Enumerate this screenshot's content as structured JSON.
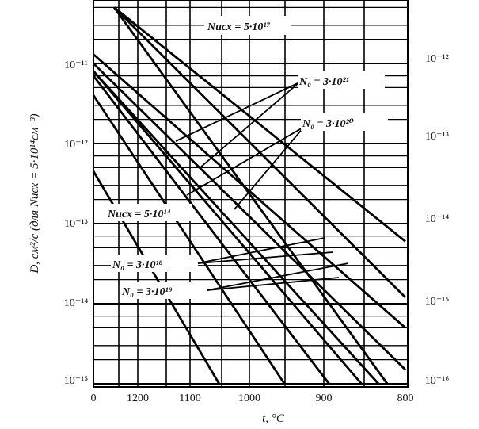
{
  "chart_data": {
    "type": "line",
    "x_scale": "reciprocal-temperature",
    "x_ticks": [
      "1200",
      "1100",
      "1000",
      "900",
      "800"
    ],
    "x_origin_label": "0",
    "xlabel": "t, °C",
    "ylabel": "D, см²/с (для Nисх = 5·10¹⁴см⁻³)",
    "y_scale": "log",
    "ylim": [
      1e-15,
      5e-11
    ],
    "y_ticks_left": [
      "10⁻¹¹",
      "10⁻¹²",
      "10⁻¹³",
      "10⁻¹⁴",
      "10⁻¹⁵"
    ],
    "y_ticks_right": [
      "10⁻¹²",
      "10⁻¹³",
      "10⁻¹⁴",
      "10⁻¹⁵",
      "10⁻¹⁶"
    ],
    "grid": true,
    "annotations": [
      {
        "id": "nisx-high",
        "text": "Nисх = 5·10¹⁷"
      },
      {
        "id": "n0-21",
        "text": "N₀ = 3·10²¹"
      },
      {
        "id": "n0-20",
        "text": "N₀ = 3·10²⁰"
      },
      {
        "id": "nisx-low",
        "text": "Nисх = 5·10¹⁴"
      },
      {
        "id": "n0-18",
        "text": "N₀ = 3·10¹⁸"
      },
      {
        "id": "n0-19",
        "text": "N₀ = 3·10¹⁹"
      }
    ],
    "series": [
      {
        "x": [
          1250,
          800
        ],
        "y": [
          5e-11,
          6e-14
        ]
      },
      {
        "x": [
          1250,
          800
        ],
        "y": [
          5e-11,
          1.2e-14
        ]
      },
      {
        "x": [
          1250,
          820
        ],
        "y": [
          5e-11,
          1e-15
        ]
      },
      {
        "x": [
          1300,
          800
        ],
        "y": [
          1.3e-11,
          5e-15
        ]
      },
      {
        "x": [
          1300,
          800
        ],
        "y": [
          1e-11,
          1.5e-15
        ]
      },
      {
        "x": [
          1300,
          830
        ],
        "y": [
          8e-12,
          1e-15
        ]
      },
      {
        "x": [
          1300,
          850
        ],
        "y": [
          8e-12,
          1e-15
        ]
      },
      {
        "x": [
          1300,
          890
        ],
        "y": [
          7e-12,
          1e-15
        ]
      },
      {
        "x": [
          1300,
          950
        ],
        "y": [
          4e-12,
          1e-15
        ]
      },
      {
        "x": [
          1300,
          1050
        ],
        "y": [
          4.5e-13,
          1e-15
        ]
      }
    ]
  }
}
